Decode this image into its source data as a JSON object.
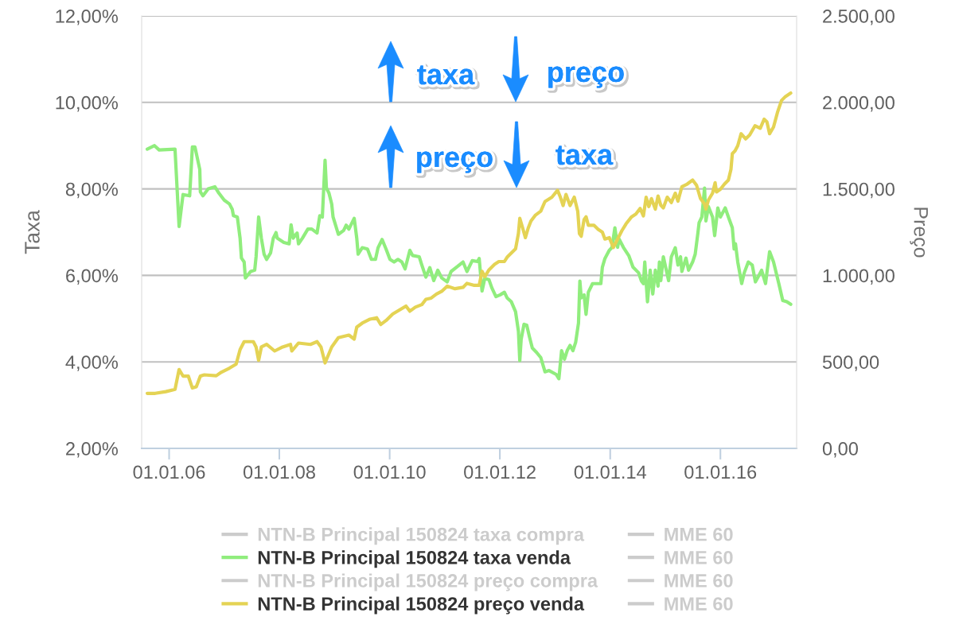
{
  "chart_data": {
    "type": "line",
    "ylabel": "Taxa",
    "y2label": "Preço",
    "xlim": [
      "2005-07-03",
      "2017-05-20"
    ],
    "xticks": [
      {
        "value": "2006-01-01",
        "label": "01.01.06"
      },
      {
        "value": "2008-01-01",
        "label": "01.01.08"
      },
      {
        "value": "2010-01-01",
        "label": "01.01.10"
      },
      {
        "value": "2012-01-01",
        "label": "01.01.12"
      },
      {
        "value": "2014-01-01",
        "label": "01.01.14"
      },
      {
        "value": "2016-01-01",
        "label": "01.01.16"
      }
    ],
    "ylim": [
      2,
      12
    ],
    "yticks": [
      {
        "value": 2,
        "label": "2,00%"
      },
      {
        "value": 4,
        "label": "4,00%"
      },
      {
        "value": 6,
        "label": "6,00%"
      },
      {
        "value": 8,
        "label": "8,00%"
      },
      {
        "value": 10,
        "label": "10,00%"
      },
      {
        "value": 12,
        "label": "12,00%"
      }
    ],
    "y2lim": [
      0,
      2500
    ],
    "y2ticks": [
      {
        "value": 0,
        "label": "0,00"
      },
      {
        "value": 500,
        "label": "500,00"
      },
      {
        "value": 1000,
        "label": "1.000,00"
      },
      {
        "value": 1500,
        "label": "1.500,00"
      },
      {
        "value": 2000,
        "label": "2.000,00"
      },
      {
        "value": 2500,
        "label": "2.500,00"
      }
    ],
    "grid": "y",
    "legend": "bottom",
    "annotations": [
      "taxa",
      "preço",
      "preço",
      "taxa"
    ],
    "series": [
      {
        "name": "NTN-B Principal 150824 taxa compra",
        "color": "#cccccc"
      },
      {
        "name": "MME 60",
        "color": "#cccccc"
      },
      {
        "name": "NTN-B Principal 150824 taxa venda",
        "color": "#90ed7d",
        "axis": "y",
        "x": [
          "2005-08-09",
          "2005-09-26",
          "2005-10-27",
          "2006-02-09",
          "2006-03-08",
          "2006-04-03",
          "2006-05-17",
          "2006-06-04",
          "2006-06-21",
          "2006-07-23",
          "2006-07-27",
          "2006-08-13",
          "2006-09-17",
          "2006-10-31",
          "2006-11-27",
          "2007-01-01",
          "2007-02-05",
          "2007-02-23",
          "2007-03-03",
          "2007-03-29",
          "2007-04-16",
          "2007-04-25",
          "2007-05-13",
          "2007-05-21",
          "2007-06-25",
          "2007-07-22",
          "2007-07-31",
          "2007-08-17",
          "2007-09-04",
          "2007-09-22",
          "2007-10-09",
          "2007-11-04",
          "2007-11-22",
          "2007-12-10",
          "2007-12-18",
          "2008-01-31",
          "2008-03-06",
          "2008-03-19",
          "2008-04-02",
          "2008-04-28",
          "2008-05-07",
          "2008-06-02",
          "2008-07-08",
          "2008-08-03",
          "2008-09-07",
          "2008-09-25",
          "2008-10-12",
          "2008-10-30",
          "2008-11-08",
          "2008-11-25",
          "2008-12-13",
          "2008-12-22",
          "2009-01-26",
          "2009-03-02",
          "2009-03-19",
          "2009-04-06",
          "2009-05-11",
          "2009-05-28",
          "2009-06-06",
          "2009-07-03",
          "2009-08-07",
          "2009-09-02",
          "2009-09-29",
          "2009-10-16",
          "2009-11-12",
          "2009-12-08",
          "2010-01-03",
          "2010-01-30",
          "2010-02-25",
          "2010-03-23",
          "2010-04-13",
          "2010-05-15",
          "2010-06-02",
          "2010-07-16",
          "2010-08-02",
          "2010-08-29",
          "2010-09-24",
          "2010-10-20",
          "2010-11-16",
          "2010-12-12",
          "2011-01-17",
          "2011-02-12",
          "2011-03-28",
          "2011-05-02",
          "2011-05-28",
          "2011-07-02",
          "2011-08-07",
          "2011-08-17",
          "2011-09-05",
          "2011-09-23",
          "2011-10-21",
          "2011-11-09",
          "2011-12-06",
          "2012-01-03",
          "2012-01-31",
          "2012-02-18",
          "2012-03-17",
          "2012-04-14",
          "2012-05-03",
          "2012-05-12",
          "2012-05-21",
          "2012-06-09",
          "2012-06-27",
          "2012-07-15",
          "2012-08-03",
          "2012-08-31",
          "2012-09-28",
          "2012-10-26",
          "2012-11-22",
          "2013-01-08",
          "2013-01-26",
          "2013-02-13",
          "2013-03-04",
          "2013-03-22",
          "2013-04-10",
          "2013-04-29",
          "2013-05-17",
          "2013-06-05",
          "2013-06-14",
          "2013-06-23",
          "2013-07-12",
          "2013-07-25",
          "2013-08-09",
          "2013-09-06",
          "2013-10-31",
          "2013-11-10",
          "2013-11-27",
          "2013-12-26",
          "2014-01-13",
          "2014-02-01",
          "2014-02-19",
          "2014-03-01",
          "2014-03-29",
          "2014-05-05",
          "2014-06-01",
          "2014-07-08",
          "2014-07-27",
          "2014-08-09",
          "2014-08-18",
          "2014-09-05",
          "2014-09-23",
          "2014-10-10",
          "2014-10-27",
          "2014-11-14",
          "2014-11-23",
          "2014-12-02",
          "2014-12-19",
          "2015-01-23",
          "2015-02-10",
          "2015-03-08",
          "2015-03-26",
          "2015-04-12",
          "2015-04-21",
          "2015-05-18",
          "2015-06-04",
          "2015-07-01",
          "2015-07-18",
          "2015-08-05",
          "2015-08-13",
          "2015-08-31",
          "2015-09-18",
          "2015-09-27",
          "2015-10-14",
          "2015-11-10",
          "2015-11-24",
          "2015-12-15",
          "2016-01-01",
          "2016-02-02",
          "2016-02-23",
          "2016-03-20",
          "2016-04-01",
          "2016-04-10",
          "2016-04-25",
          "2016-05-21",
          "2016-06-07",
          "2016-07-04",
          "2016-07-30",
          "2016-08-20",
          "2016-09-12",
          "2016-09-30",
          "2016-10-26",
          "2016-11-22",
          "2016-12-18",
          "2017-01-22",
          "2017-02-17",
          "2017-03-16",
          "2017-04-11"
        ],
        "values": [
          8.92,
          9.0,
          8.9,
          8.92,
          7.13,
          7.87,
          7.84,
          8.97,
          8.97,
          8.45,
          7.93,
          7.84,
          8.0,
          8.05,
          7.9,
          7.74,
          7.65,
          7.53,
          7.38,
          7.35,
          6.86,
          6.4,
          6.31,
          5.94,
          6.09,
          6.12,
          6.43,
          7.35,
          6.86,
          6.49,
          6.37,
          6.52,
          6.86,
          6.99,
          6.86,
          6.76,
          6.73,
          7.17,
          6.86,
          6.98,
          6.73,
          6.86,
          7.07,
          7.07,
          6.98,
          7.38,
          7.35,
          8.66,
          8.02,
          7.9,
          7.65,
          7.35,
          6.95,
          7.04,
          7.16,
          7.07,
          7.32,
          6.86,
          6.49,
          6.64,
          6.61,
          6.37,
          6.37,
          6.64,
          6.83,
          6.61,
          6.37,
          6.31,
          6.37,
          6.31,
          6.15,
          6.58,
          6.46,
          6.43,
          6.24,
          5.96,
          6.18,
          5.88,
          6.12,
          5.94,
          5.85,
          6.09,
          6.21,
          6.31,
          6.09,
          6.34,
          6.32,
          6.39,
          5.64,
          5.93,
          5.9,
          5.71,
          5.51,
          5.55,
          5.61,
          5.48,
          5.39,
          5.16,
          4.71,
          4.03,
          4.52,
          4.87,
          4.85,
          4.58,
          4.32,
          4.22,
          4.1,
          3.77,
          3.8,
          3.71,
          3.61,
          4.26,
          4.06,
          4.26,
          4.38,
          4.26,
          4.45,
          4.9,
          5.87,
          5.48,
          5.55,
          5.1,
          5.61,
          5.81,
          5.81,
          6.19,
          6.39,
          6.58,
          6.65,
          7.1,
          6.65,
          6.84,
          6.65,
          6.45,
          6.19,
          6.06,
          5.87,
          5.81,
          6.31,
          5.39,
          6.12,
          5.57,
          6.12,
          5.75,
          6.31,
          5.88,
          6.43,
          5.88,
          6.43,
          6.64,
          6.24,
          6.43,
          6.09,
          6.4,
          6.12,
          6.31,
          6.49,
          6.98,
          7.22,
          7.35,
          8.02,
          7.26,
          7.59,
          7.35,
          6.92,
          7.56,
          7.35,
          7.56,
          7.35,
          7.1,
          6.61,
          6.73,
          6.31,
          5.81,
          6.06,
          6.31,
          6.24,
          5.85,
          6.0,
          6.12,
          5.81,
          6.55,
          6.31,
          5.81,
          5.42,
          5.39,
          5.33
        ]
      },
      {
        "name": "MME 60",
        "color": "#cccccc"
      },
      {
        "name": "NTN-B Principal 150824 preço compra",
        "color": "#cccccc"
      },
      {
        "name": "MME 60",
        "color": "#cccccc"
      },
      {
        "name": "NTN-B Principal 150824 preço venda",
        "color": "#e4d354",
        "axis": "y2",
        "x": [
          "2005-08-09",
          "2005-10-01",
          "2005-12-10",
          "2006-02-09",
          "2006-03-08",
          "2006-04-03",
          "2006-05-08",
          "2006-06-04",
          "2006-06-30",
          "2006-07-27",
          "2006-08-22",
          "2006-11-09",
          "2006-12-14",
          "2007-02-05",
          "2007-03-21",
          "2007-04-16",
          "2007-05-13",
          "2007-07-13",
          "2007-07-31",
          "2007-08-17",
          "2007-09-04",
          "2007-10-09",
          "2007-12-01",
          "2008-01-23",
          "2008-03-15",
          "2008-03-24",
          "2008-05-07",
          "2008-07-25",
          "2008-09-07",
          "2008-10-03",
          "2008-10-30",
          "2008-12-13",
          "2009-01-26",
          "2009-04-06",
          "2009-05-11",
          "2009-05-28",
          "2009-07-03",
          "2009-08-24",
          "2009-10-07",
          "2009-11-03",
          "2009-12-08",
          "2010-01-21",
          "2010-03-06",
          "2010-04-19",
          "2010-05-15",
          "2010-06-20",
          "2010-08-02",
          "2010-08-29",
          "2010-10-03",
          "2010-11-07",
          "2010-12-12",
          "2011-01-17",
          "2011-03-10",
          "2011-05-02",
          "2011-05-28",
          "2011-07-11",
          "2011-08-17",
          "2011-09-05",
          "2011-09-23",
          "2011-10-21",
          "2011-11-27",
          "2011-12-25",
          "2012-01-31",
          "2012-02-18",
          "2012-04-14",
          "2012-05-03",
          "2012-05-12",
          "2012-05-31",
          "2012-06-18",
          "2012-07-07",
          "2012-07-25",
          "2012-08-22",
          "2012-09-28",
          "2012-10-26",
          "2012-12-11",
          "2013-01-17",
          "2013-02-05",
          "2013-02-23",
          "2013-03-14",
          "2013-04-10",
          "2013-05-08",
          "2013-05-31",
          "2013-06-11",
          "2013-06-23",
          "2013-07-12",
          "2013-07-25",
          "2013-08-09",
          "2013-09-15",
          "2013-10-13",
          "2013-11-10",
          "2013-11-27",
          "2013-12-26",
          "2014-01-22",
          "2014-02-19",
          "2014-03-19",
          "2014-04-16",
          "2014-05-23",
          "2014-06-20",
          "2014-07-18",
          "2014-08-09",
          "2014-08-27",
          "2014-09-14",
          "2014-10-01",
          "2014-10-27",
          "2014-11-14",
          "2014-12-02",
          "2014-12-19",
          "2015-01-14",
          "2015-02-10",
          "2015-03-08",
          "2015-03-26",
          "2015-04-21",
          "2015-05-26",
          "2015-07-01",
          "2015-07-27",
          "2015-08-22",
          "2015-09-18",
          "2015-09-27",
          "2015-10-14",
          "2015-11-10",
          "2015-11-27",
          "2015-12-06",
          "2016-01-01",
          "2016-01-28",
          "2016-02-23",
          "2016-03-11",
          "2016-03-20",
          "2016-04-07",
          "2016-04-25",
          "2016-05-17",
          "2016-06-16",
          "2016-07-13",
          "2016-08-17",
          "2016-09-21",
          "2016-10-17",
          "2016-11-04",
          "2016-11-22",
          "2016-12-18",
          "2017-01-13",
          "2017-02-09",
          "2017-03-07",
          "2017-04-11"
        ],
        "values": [
          318,
          318,
          328,
          341,
          456,
          418,
          418,
          349,
          356,
          418,
          425,
          420,
          441,
          464,
          487,
          571,
          617,
          617,
          586,
          509,
          586,
          601,
          563,
          586,
          601,
          563,
          609,
          601,
          617,
          586,
          494,
          586,
          640,
          655,
          632,
          701,
          724,
          747,
          755,
          716,
          739,
          777,
          800,
          823,
          793,
          816,
          831,
          862,
          869,
          892,
          908,
          938,
          923,
          931,
          954,
          943,
          943,
          1024,
          992,
          1032,
          1064,
          1080,
          1080,
          1105,
          1153,
          1242,
          1330,
          1274,
          1218,
          1274,
          1314,
          1347,
          1371,
          1427,
          1452,
          1492,
          1452,
          1404,
          1468,
          1404,
          1452,
          1371,
          1242,
          1226,
          1323,
          1339,
          1290,
          1290,
          1266,
          1250,
          1210,
          1218,
          1161,
          1210,
          1258,
          1298,
          1339,
          1355,
          1387,
          1344,
          1452,
          1398,
          1444,
          1383,
          1459,
          1406,
          1390,
          1452,
          1421,
          1475,
          1429,
          1513,
          1528,
          1551,
          1521,
          1444,
          1413,
          1383,
          1436,
          1475,
          1536,
          1482,
          1498,
          1528,
          1551,
          1613,
          1704,
          1720,
          1750,
          1819,
          1789,
          1812,
          1865,
          1850,
          1903,
          1888,
          1819,
          1858,
          1942,
          2011,
          2034,
          2054
        ]
      },
      {
        "name": "MME 60",
        "color": "#cccccc"
      }
    ]
  }
}
